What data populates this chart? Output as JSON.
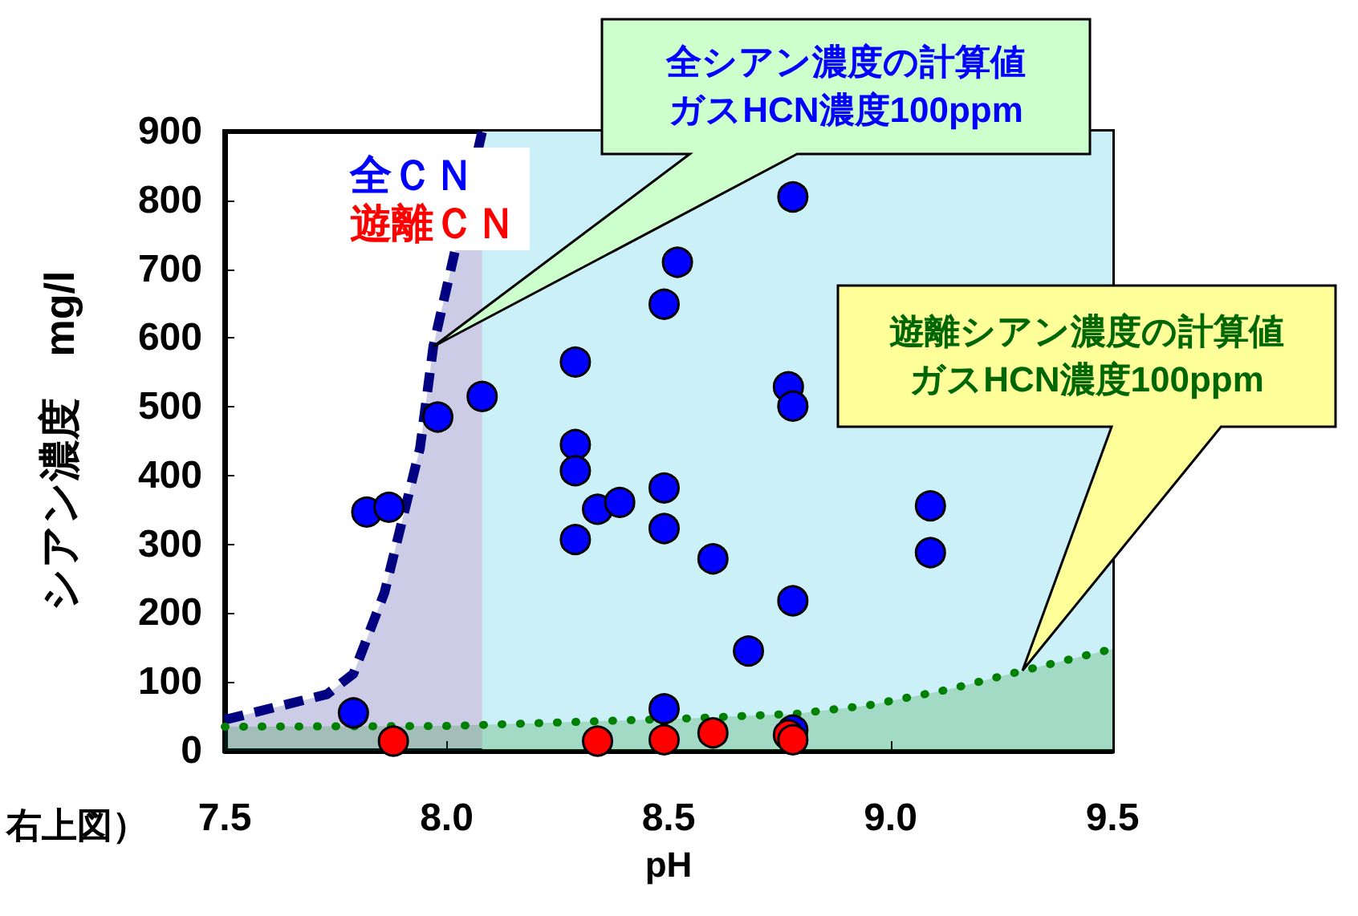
{
  "chart_data": {
    "type": "scatter",
    "xlabel": "pH",
    "ylabel": "シアン濃度　mg/l",
    "xlim": [
      7.5,
      9.5
    ],
    "xticks": [
      {
        "value": 7.5,
        "label": "7.5"
      },
      {
        "value": 8,
        "label": "8.0"
      },
      {
        "value": 8.5,
        "label": "8.5"
      },
      {
        "value": 9,
        "label": "9.0"
      },
      {
        "value": 9.5,
        "label": "9.5"
      }
    ],
    "ylim": [
      0,
      900
    ],
    "yticks": [
      0,
      100,
      200,
      300,
      400,
      500,
      600,
      700,
      800,
      900
    ],
    "grid": false,
    "legend": "top left",
    "marker": "circle",
    "bands": [
      {
        "axis": "x",
        "from": 8.08,
        "to": 9.5,
        "color": "#ccf0f8"
      }
    ],
    "series": [
      {
        "name": "全ＣＮ",
        "color": "#0000ff",
        "x": [
          7.79,
          7.82,
          7.87,
          7.98,
          8.08,
          8.29,
          8.29,
          8.29,
          8.29,
          8.34,
          8.39,
          8.49,
          8.52,
          8.49,
          8.49,
          8.49,
          8.6,
          8.68,
          8.77,
          8.78,
          8.78,
          8.78,
          9.09,
          9.09,
          8.78
        ],
        "values": [
          55,
          347,
          354,
          485,
          515,
          565,
          445,
          407,
          307,
          351,
          361,
          649,
          710,
          382,
          323,
          61,
          279,
          145,
          529,
          501,
          805,
          218,
          356,
          288,
          30
        ]
      },
      {
        "name": "遊離ＣＮ",
        "color": "#ff0000",
        "x": [
          7.88,
          8.34,
          8.49,
          8.6,
          8.77,
          8.78
        ],
        "values": [
          14,
          14,
          16,
          26,
          23,
          16
        ]
      },
      {
        "type": "area",
        "color": "#000080",
        "marker": "none",
        "line_style": "dashed",
        "x": [
          7.5,
          7.73,
          7.79,
          7.86,
          7.94,
          7.97,
          8.08
        ],
        "values": [
          45,
          82,
          112,
          230,
          440,
          588,
          900
        ]
      },
      {
        "type": "area",
        "color": "#008000",
        "marker": "none",
        "line_style": "dotted",
        "x": [
          7.5,
          8.0,
          8.54,
          8.79,
          8.95,
          9.13,
          9.29,
          9.5
        ],
        "values": [
          35,
          36,
          47,
          54,
          66,
          89,
          115,
          148
        ]
      }
    ],
    "annotations": [
      "全シアン濃度の計算値ガスHCN濃度100ppm",
      "遊離シアン濃度の計算値ガスHCN濃度100ppm",
      "右上図）"
    ]
  }
}
